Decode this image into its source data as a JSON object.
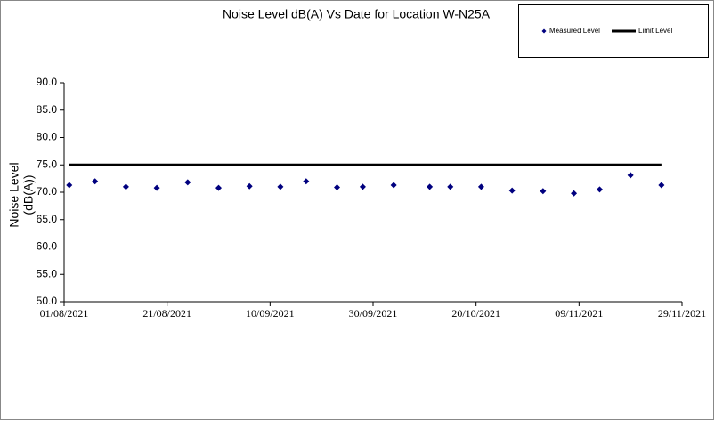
{
  "chart_data": {
    "type": "scatter",
    "title": "Noise Level dB(A) Vs Date for Location W-N25A",
    "y_label": [
      "Noise Level",
      "(dB(A))"
    ],
    "x": [
      "02/08/2021",
      "07/08/2021",
      "13/08/2021",
      "19/08/2021",
      "25/08/2021",
      "31/08/2021",
      "06/09/2021",
      "12/09/2021",
      "17/09/2021",
      "23/09/2021",
      "28/09/2021",
      "04/10/2021",
      "11/10/2021",
      "15/10/2021",
      "21/10/2021",
      "27/10/2021",
      "02/11/2021",
      "08/11/2021",
      "13/11/2021",
      "19/11/2021",
      "25/11/2021"
    ],
    "series": [
      {
        "name": "Measured Level",
        "color": "#00007f",
        "style": "marker",
        "values": [
          71.3,
          72.0,
          71.0,
          70.8,
          71.8,
          70.8,
          71.1,
          71.0,
          72.0,
          70.9,
          71.0,
          71.3,
          71.0,
          71.0,
          71.0,
          70.3,
          70.2,
          69.8,
          70.5,
          73.1,
          71.3
        ]
      },
      {
        "name": "Limit Level",
        "color": "#000000",
        "style": "line",
        "values": [
          75,
          75,
          75,
          75,
          75,
          75,
          75,
          75,
          75,
          75,
          75,
          75,
          75,
          75,
          75,
          75,
          75,
          75,
          75,
          75,
          75
        ]
      }
    ],
    "xlim": [
      "01/08/2021",
      "29/11/2021"
    ],
    "xticks": [
      "01/08/2021",
      "21/08/2021",
      "10/09/2021",
      "30/09/2021",
      "20/10/2021",
      "09/11/2021",
      "29/11/2021"
    ],
    "ylim": [
      50,
      90
    ],
    "yticks": [
      {
        "value": 50,
        "label": "50.0"
      },
      {
        "value": 55,
        "label": "55.0"
      },
      {
        "value": 60,
        "label": "60.0"
      },
      {
        "value": 65,
        "label": "65.0"
      },
      {
        "value": 70,
        "label": "70.0"
      },
      {
        "value": 75,
        "label": "75.0"
      },
      {
        "value": 80,
        "label": "80.0"
      },
      {
        "value": 85,
        "label": "85.0"
      },
      {
        "value": 90,
        "label": "90.0"
      }
    ],
    "grid": false,
    "legend": "top-right"
  }
}
